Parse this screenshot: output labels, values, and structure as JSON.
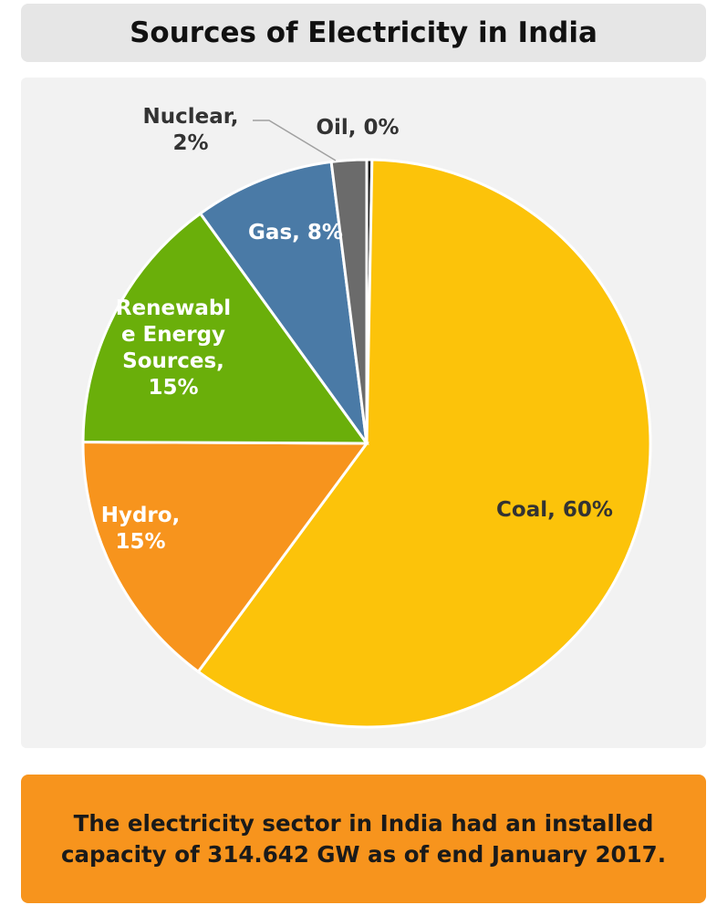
{
  "title": "Sources of Electricity in India",
  "footer": "The electricity sector in India had an installed capacity of 314.642 GW as of end January 2017.",
  "colors": {
    "coal": "#fcc30a",
    "hydro": "#f7941d",
    "renewable": "#6aaf0a",
    "gas": "#4a7aa6",
    "nuclear": "#6b6b6b",
    "oil": "#222222"
  },
  "chart_data": {
    "type": "pie",
    "title": "Sources of Electricity in India",
    "slices": [
      {
        "name": "Oil",
        "value": 0.3,
        "label_lines": [
          "Oil, 0%"
        ],
        "color": "#222222",
        "label_color": "#333333"
      },
      {
        "name": "Coal",
        "value": 60,
        "label_lines": [
          "Coal, 60%"
        ],
        "color": "#fcc30a",
        "label_color": "#333333"
      },
      {
        "name": "Hydro",
        "value": 15,
        "label_lines": [
          "Hydro,",
          "15%"
        ],
        "color": "#f7941d",
        "label_color": "#ffffff"
      },
      {
        "name": "Renewable Energy Sources",
        "value": 15,
        "label_lines": [
          "Renewabl",
          "e Energy",
          "Sources,",
          "15%"
        ],
        "color": "#6aaf0a",
        "label_color": "#ffffff"
      },
      {
        "name": "Gas",
        "value": 8,
        "label_lines": [
          "Gas, 8%"
        ],
        "color": "#4a7aa6",
        "label_color": "#ffffff"
      },
      {
        "name": "Nuclear",
        "value": 2,
        "label_lines": [
          "Nuclear,",
          "2%"
        ],
        "color": "#6b6b6b",
        "label_color": "#333333"
      }
    ]
  }
}
